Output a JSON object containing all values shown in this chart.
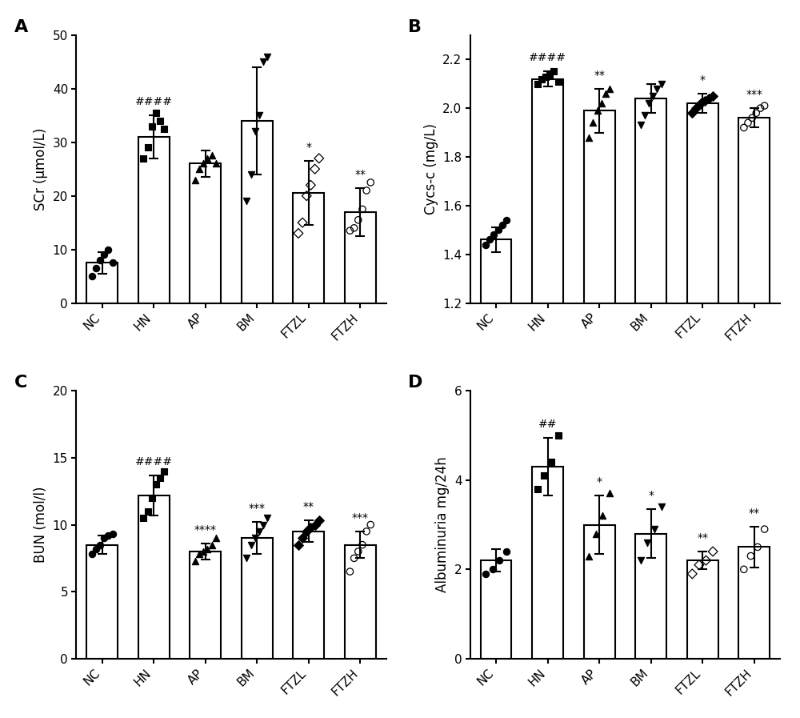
{
  "panels": [
    {
      "label": "A",
      "ylabel": "SCr (μmol/L)",
      "ylim": [
        0,
        50
      ],
      "yticks": [
        0,
        10,
        20,
        30,
        40,
        50
      ],
      "categories": [
        "NC",
        "HN",
        "AP",
        "BM",
        "FTZL",
        "FTZH"
      ],
      "means": [
        7.5,
        31.0,
        26.0,
        34.0,
        20.5,
        17.0
      ],
      "errors": [
        2.0,
        4.0,
        2.5,
        10.0,
        6.0,
        4.5
      ],
      "significance": [
        "",
        "####",
        "",
        "",
        "*",
        "**"
      ],
      "jitter_points": [
        [
          5.0,
          6.5,
          8.0,
          9.0,
          10.0,
          7.5
        ],
        [
          27.0,
          29.0,
          33.0,
          35.5,
          34.0,
          32.5
        ],
        [
          23.0,
          25.0,
          26.0,
          27.0,
          27.5,
          26.0
        ],
        [
          19.0,
          24.0,
          32.0,
          35.0,
          45.0,
          46.0
        ],
        [
          13.0,
          15.0,
          20.0,
          22.0,
          25.0,
          27.0
        ],
        [
          13.5,
          14.0,
          15.5,
          17.5,
          21.0,
          22.5
        ]
      ],
      "filled": [
        true,
        true,
        true,
        true,
        false,
        false
      ],
      "markers": [
        "o",
        "s",
        "^",
        "v",
        "D",
        "o"
      ]
    },
    {
      "label": "B",
      "ylabel": "Cycs-c (mg/L)",
      "ylim": [
        1.2,
        2.3
      ],
      "yticks": [
        1.2,
        1.4,
        1.6,
        1.8,
        2.0,
        2.2
      ],
      "categories": [
        "NC",
        "HN",
        "AP",
        "BM",
        "FTZL",
        "FTZH"
      ],
      "means": [
        1.46,
        2.12,
        1.99,
        2.04,
        2.02,
        1.96
      ],
      "errors": [
        0.05,
        0.03,
        0.09,
        0.06,
        0.04,
        0.04
      ],
      "significance": [
        "",
        "####",
        "**",
        "",
        "*",
        "***"
      ],
      "jitter_points": [
        [
          1.44,
          1.46,
          1.48,
          1.5,
          1.52,
          1.54
        ],
        [
          2.1,
          2.12,
          2.13,
          2.14,
          2.15,
          2.11
        ],
        [
          1.88,
          1.94,
          1.99,
          2.02,
          2.06,
          2.08
        ],
        [
          1.93,
          1.97,
          2.02,
          2.05,
          2.08,
          2.1
        ],
        [
          1.98,
          2.0,
          2.02,
          2.03,
          2.04,
          2.05
        ],
        [
          1.92,
          1.94,
          1.96,
          1.98,
          2.0,
          2.01
        ]
      ],
      "filled": [
        true,
        true,
        true,
        true,
        true,
        false
      ],
      "markers": [
        "o",
        "s",
        "^",
        "v",
        "D",
        "o"
      ]
    },
    {
      "label": "C",
      "ylabel": "BUN (mol/l)",
      "ylim": [
        0,
        20
      ],
      "yticks": [
        0,
        5,
        10,
        15,
        20
      ],
      "categories": [
        "NC",
        "HN",
        "AP",
        "BM",
        "FTZL",
        "FTZH"
      ],
      "means": [
        8.5,
        12.2,
        8.0,
        9.0,
        9.5,
        8.5
      ],
      "errors": [
        0.7,
        1.5,
        0.6,
        1.2,
        0.8,
        1.0
      ],
      "significance": [
        "",
        "####",
        "****",
        "***",
        "**",
        "***"
      ],
      "jitter_points": [
        [
          7.8,
          8.2,
          8.5,
          9.0,
          9.2,
          9.3
        ],
        [
          10.5,
          11.0,
          12.0,
          13.0,
          13.5,
          14.0
        ],
        [
          7.3,
          7.8,
          8.0,
          8.2,
          8.5,
          9.0
        ],
        [
          7.5,
          8.5,
          9.0,
          9.5,
          10.0,
          10.5
        ],
        [
          8.5,
          9.0,
          9.5,
          9.8,
          10.0,
          10.3
        ],
        [
          6.5,
          7.5,
          8.0,
          8.5,
          9.5,
          10.0
        ]
      ],
      "filled": [
        true,
        true,
        true,
        true,
        true,
        false
      ],
      "markers": [
        "o",
        "s",
        "^",
        "v",
        "D",
        "o"
      ]
    },
    {
      "label": "D",
      "ylabel": "Albuminuria mg/24h",
      "ylim": [
        0,
        6
      ],
      "yticks": [
        0,
        2,
        4,
        6
      ],
      "categories": [
        "NC",
        "HN",
        "AP",
        "BM",
        "FTZL",
        "FTZH"
      ],
      "means": [
        2.2,
        4.3,
        3.0,
        2.8,
        2.2,
        2.5
      ],
      "errors": [
        0.25,
        0.65,
        0.65,
        0.55,
        0.2,
        0.45
      ],
      "significance": [
        "",
        "##",
        "*",
        "*",
        "**",
        "**"
      ],
      "jitter_points": [
        [
          1.9,
          2.0,
          2.2,
          2.4
        ],
        [
          3.8,
          4.1,
          4.4,
          5.0
        ],
        [
          2.3,
          2.8,
          3.2,
          3.7
        ],
        [
          2.2,
          2.6,
          2.9,
          3.4
        ],
        [
          1.9,
          2.1,
          2.2,
          2.4
        ],
        [
          2.0,
          2.3,
          2.5,
          2.9
        ]
      ],
      "filled": [
        true,
        true,
        true,
        true,
        false,
        false
      ],
      "markers": [
        "o",
        "s",
        "^",
        "v",
        "D",
        "o"
      ]
    }
  ],
  "bar_color": "#ffffff",
  "bar_edgecolor": "#000000",
  "bar_linewidth": 1.5,
  "errorbar_color": "#000000",
  "errorbar_linewidth": 1.5,
  "errorbar_capsize": 4,
  "point_color": "#000000",
  "point_size": 36,
  "background_color": "#ffffff",
  "sig_fontsize": 10,
  "tick_fontsize": 11,
  "axis_label_fontsize": 12,
  "panel_label_fontsize": 16
}
